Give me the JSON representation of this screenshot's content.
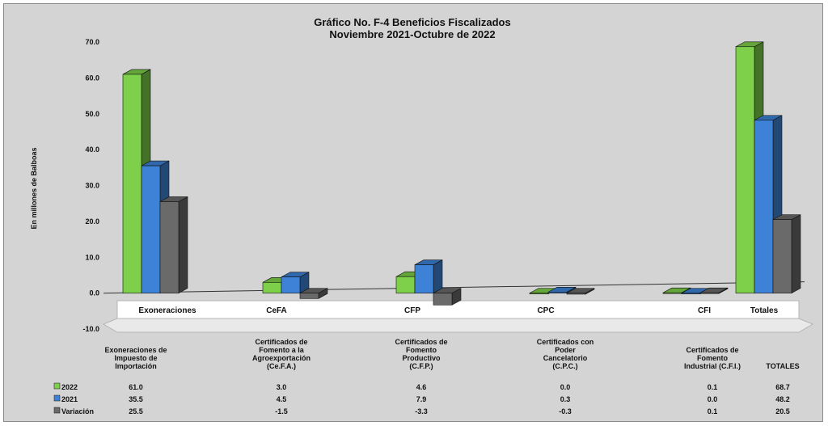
{
  "chart_data": {
    "type": "bar",
    "title": "Gráfico No. F-4 Beneficios Fiscalizados",
    "subtitle": "Noviembre 2021-Octubre de 2022",
    "ylabel": "En millones de Balboas",
    "ylim": [
      -10,
      70
    ],
    "yticks": [
      "70.0",
      "60.0",
      "50.0",
      "40.0",
      "30.0",
      "20.0",
      "10.0",
      "0.0",
      "-10.0"
    ],
    "categories": [
      "Exoneraciones",
      "CeFA",
      "CFP",
      "CPC",
      "CFI",
      "Totales"
    ],
    "table_headers": [
      "Exoneraciones de|Impuesto de|Importación",
      "Certificados de|Fomento a la|Agroexportación|(Ce.F.A.)",
      "Certificados de|Fomento|Productivo|(C.F.P.)",
      "Certificados con|Poder|Cancelatorio|(C.P.C.)",
      "Certificados de|Fomento|Industrial (C.F.I.)",
      "TOTALES"
    ],
    "series": [
      {
        "name": "2022",
        "color": "#7ecf4a",
        "values": [
          61.0,
          3.0,
          4.6,
          0.0,
          0.1,
          68.7
        ],
        "labels": [
          "61.0",
          "3.0",
          "4.6",
          "0.0",
          "0.1",
          "68.7"
        ]
      },
      {
        "name": "2021",
        "color": "#3d82d6",
        "values": [
          35.5,
          4.5,
          7.9,
          0.3,
          0.0,
          48.2
        ],
        "labels": [
          "35.5",
          "4.5",
          "7.9",
          "0.3",
          "0.0",
          "48.2"
        ]
      },
      {
        "name": "Variación",
        "color": "#6a6a6a",
        "values": [
          25.5,
          -1.5,
          -3.3,
          -0.3,
          0.1,
          20.5
        ],
        "labels": [
          "25.5",
          "-1.5",
          "-3.3",
          "-0.3",
          "0.1",
          "20.5"
        ]
      }
    ],
    "grid": false,
    "legend": "table-rows"
  }
}
